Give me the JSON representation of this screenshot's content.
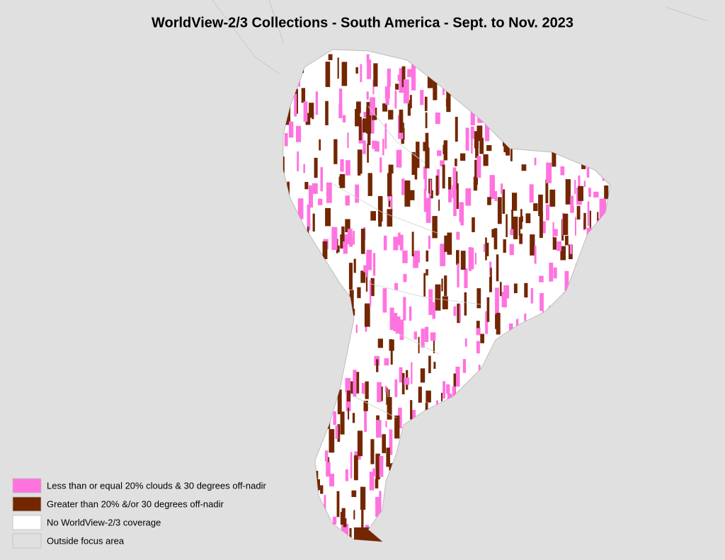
{
  "title": "WorldView-2/3 Collections - South America - Sept. to Nov. 2023",
  "legend": [
    {
      "label": "Less than or equal 20% clouds & 30 degrees off-nadir",
      "color": "#ff73df"
    },
    {
      "label": "Greater than 20% &/or 30 degrees off-nadir",
      "color": "#732600"
    },
    {
      "label": "No WorldView-2/3 coverage",
      "color": "#ffffff"
    },
    {
      "label": "Outside focus area",
      "color": "#e0e0e0"
    }
  ]
}
